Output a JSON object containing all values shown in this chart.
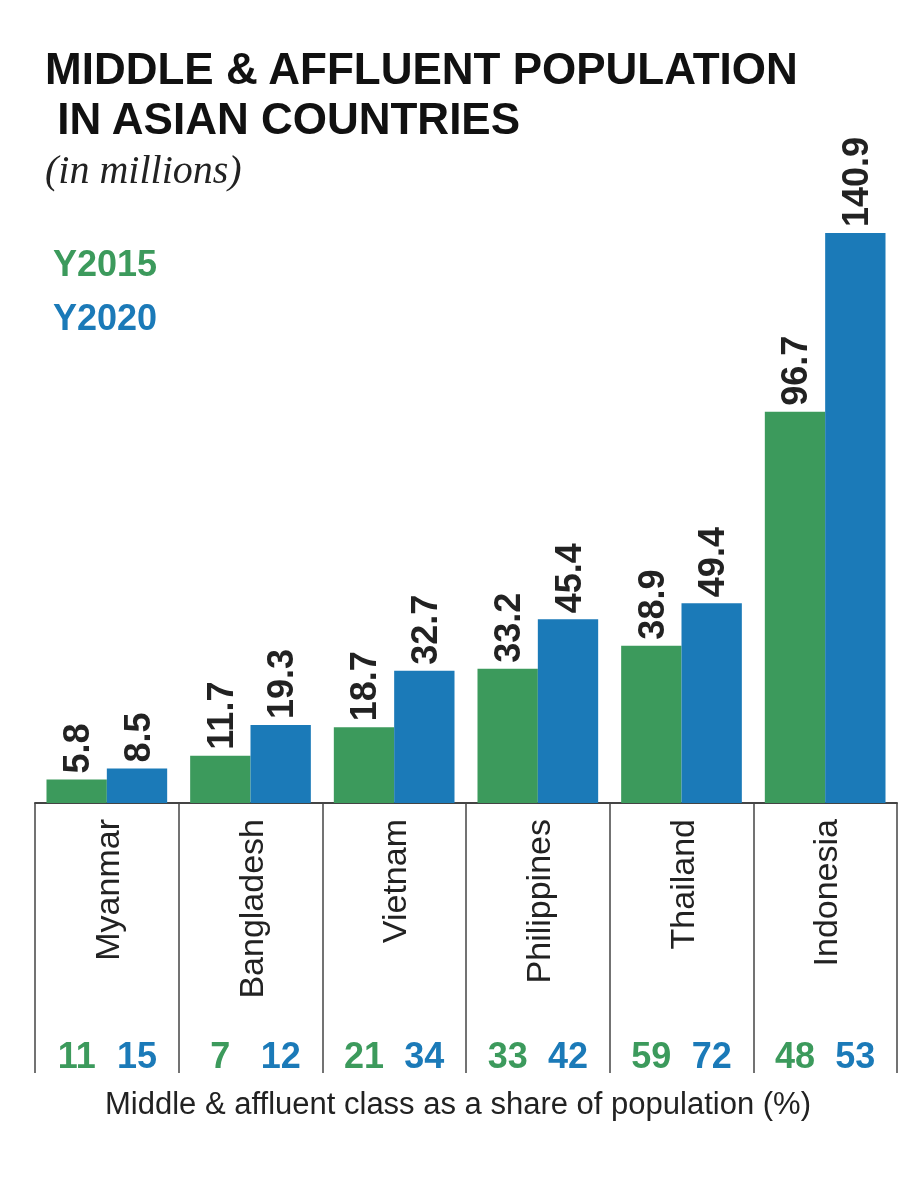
{
  "chart_data": {
    "type": "bar",
    "title": "MIDDLE & AFFLUENT POPULATION IN ASIAN COUNTRIES",
    "subtitle": "(in millions)",
    "categories": [
      "Myanmar",
      "Bangladesh",
      "Vietnam",
      "Philippines",
      "Thailand",
      "Indonesia"
    ],
    "series": [
      {
        "name": "Y2015",
        "color": "#3c9a5c",
        "values": [
          5.8,
          11.7,
          18.7,
          33.2,
          38.9,
          96.7
        ]
      },
      {
        "name": "Y2020",
        "color": "#1b7ab8",
        "values": [
          8.5,
          19.3,
          32.7,
          45.4,
          49.4,
          140.9
        ]
      }
    ],
    "data_labels": true,
    "legend": "top left",
    "grid": false,
    "annotations": [
      "11",
      "15",
      "7",
      "12",
      "21",
      "34",
      "33",
      "42",
      "59",
      "72",
      "48",
      "53",
      "Middle & affluent class as a share of population (%)"
    ]
  }
}
